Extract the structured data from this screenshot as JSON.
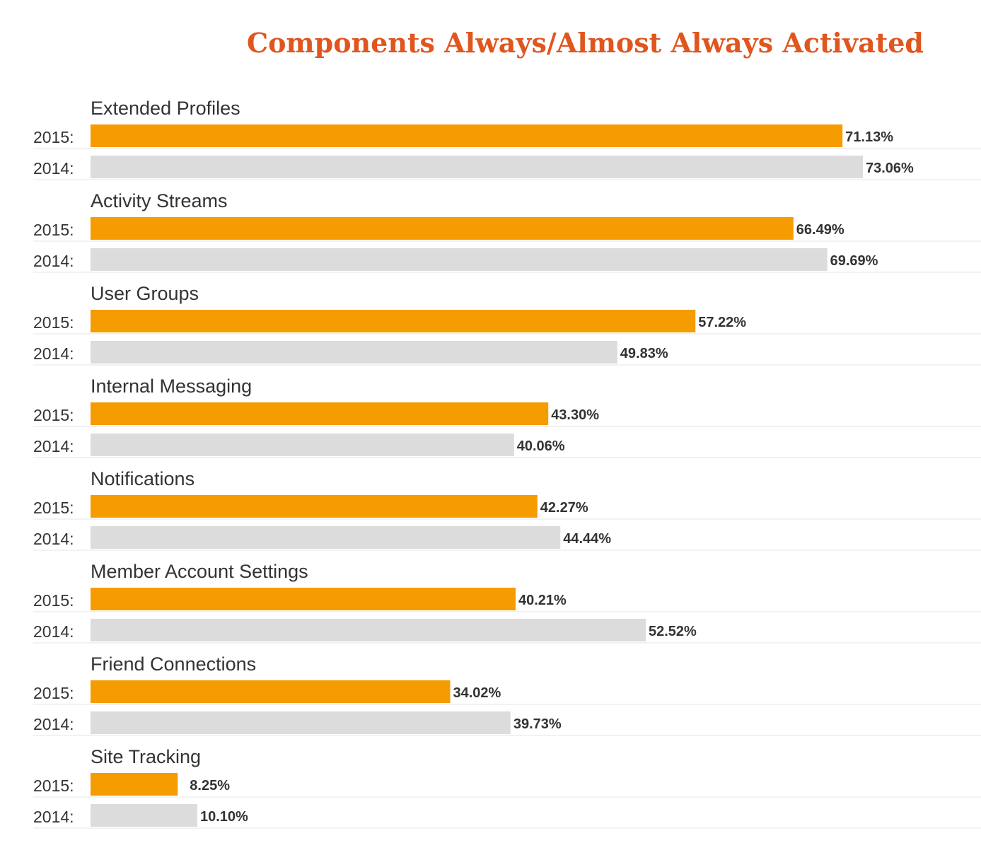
{
  "colors": {
    "title": "#e0561f",
    "series_2015": "#f59c00",
    "series_2014": "#dcdcdc",
    "text": "#333333"
  },
  "chart_data": {
    "type": "bar",
    "orientation": "horizontal",
    "title": "Components Always/Almost Always Activated",
    "xlabel": "",
    "ylabel": "",
    "xlim": [
      0,
      73.06
    ],
    "grid": false,
    "categories": [
      "Extended Profiles",
      "Activity Streams",
      "User Groups",
      "Internal Messaging",
      "Notifications",
      "Member Account Settings",
      "Friend Connections",
      "Site Tracking"
    ],
    "series": [
      {
        "row_label": "2015:",
        "values": [
          71.13,
          66.49,
          57.22,
          43.3,
          42.27,
          40.21,
          34.02,
          8.25
        ],
        "labels": [
          "71.13%",
          "66.49%",
          "57.22%",
          "43.30%",
          "42.27%",
          "40.21%",
          "34.02%",
          "8.25%"
        ]
      },
      {
        "row_label": "2014:",
        "values": [
          73.06,
          69.69,
          49.83,
          40.06,
          44.44,
          52.52,
          39.73,
          10.1
        ],
        "labels": [
          "73.06%",
          "69.69%",
          "49.83%",
          "40.06%",
          "44.44%",
          "52.52%",
          "39.73%",
          "10.10%"
        ]
      }
    ]
  }
}
